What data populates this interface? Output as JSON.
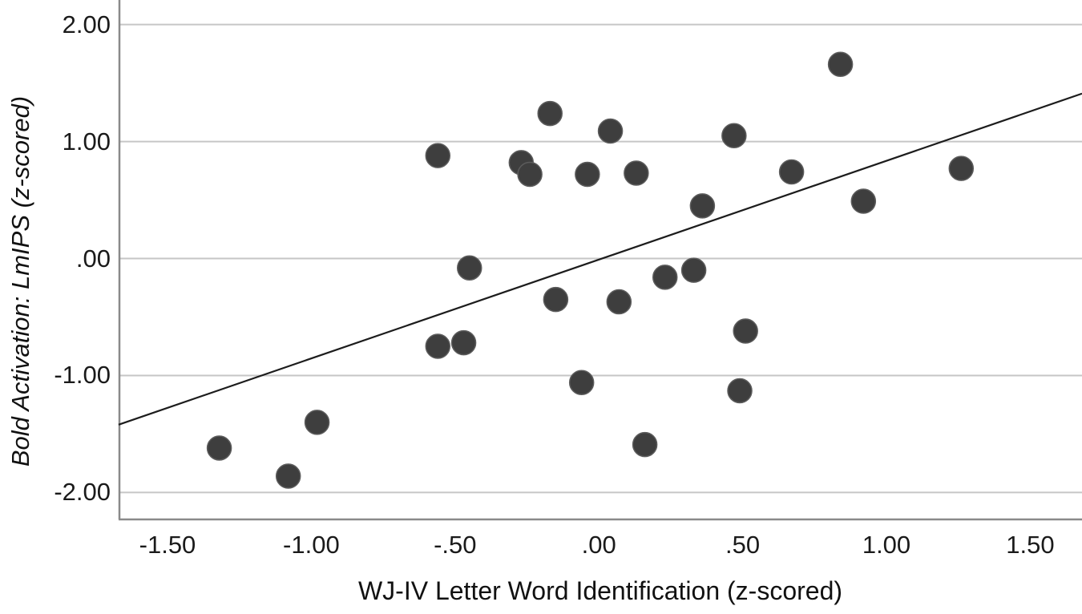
{
  "chart_data": {
    "type": "scatter",
    "title": "",
    "xlabel": "WJ-IV Letter Word Identification (z-scored)",
    "ylabel": "Bold Activation: LmIPS (z-scored)",
    "xlim": [
      -1.67,
      1.68
    ],
    "ylim": [
      -2.23,
      2.21
    ],
    "grid": "horizontal-only",
    "legend": "none",
    "x_ticks": [
      {
        "value": -1.5,
        "label": "-1.50"
      },
      {
        "value": -1.0,
        "label": "-1.00"
      },
      {
        "value": -0.5,
        "label": "-.50"
      },
      {
        "value": 0.0,
        "label": ".00"
      },
      {
        "value": 0.5,
        "label": ".50"
      },
      {
        "value": 1.0,
        "label": "1.00"
      },
      {
        "value": 1.5,
        "label": "1.50"
      }
    ],
    "y_ticks": [
      {
        "value": 2.0,
        "label": "2.00"
      },
      {
        "value": 1.0,
        "label": "1.00"
      },
      {
        "value": 0.0,
        "label": ".00"
      },
      {
        "value": -1.0,
        "label": "-1.00"
      },
      {
        "value": -2.0,
        "label": "-2.00"
      }
    ],
    "points": [
      [
        -1.32,
        -1.62
      ],
      [
        -1.08,
        -1.86
      ],
      [
        -0.98,
        -1.4
      ],
      [
        -0.56,
        0.88
      ],
      [
        -0.56,
        -0.75
      ],
      [
        -0.47,
        -0.72
      ],
      [
        -0.45,
        -0.08
      ],
      [
        -0.27,
        0.82
      ],
      [
        -0.24,
        0.72
      ],
      [
        -0.17,
        1.24
      ],
      [
        -0.15,
        -0.35
      ],
      [
        -0.06,
        -1.06
      ],
      [
        -0.04,
        0.72
      ],
      [
        0.04,
        1.09
      ],
      [
        0.07,
        -0.37
      ],
      [
        0.13,
        0.73
      ],
      [
        0.16,
        -1.59
      ],
      [
        0.23,
        -0.16
      ],
      [
        0.33,
        -0.1
      ],
      [
        0.36,
        0.45
      ],
      [
        0.47,
        1.05
      ],
      [
        0.49,
        -1.13
      ],
      [
        0.51,
        -0.62
      ],
      [
        0.67,
        0.74
      ],
      [
        0.84,
        1.66
      ],
      [
        0.92,
        0.49
      ],
      [
        1.26,
        0.77
      ]
    ],
    "trendline": {
      "x1": -1.67,
      "y1": -1.42,
      "x2": 1.68,
      "y2": 1.41,
      "slope": 0.85,
      "intercept": 0.0
    },
    "colors": {
      "point_fill": "#3e3e3e",
      "point_edge": "#5c5c5c",
      "trend_line": "#1c1c1c",
      "grid_line": "#c6c6c6",
      "axis_line": "#8a8a8a",
      "text": "#1a1a1a",
      "background": "#ffffff"
    }
  }
}
